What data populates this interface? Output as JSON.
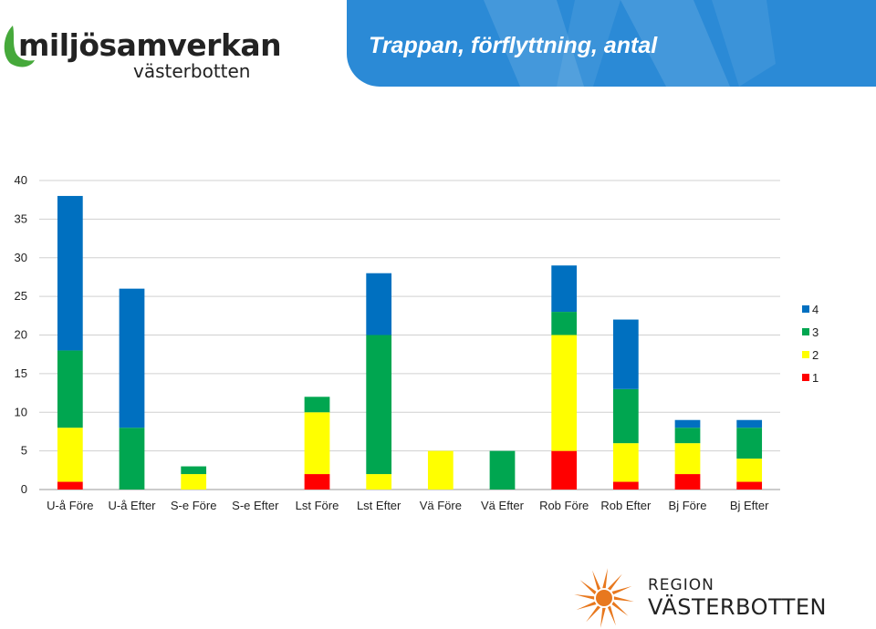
{
  "logo": {
    "main": "miljösamverkan",
    "sub": "västerbotten"
  },
  "header": {
    "title": "Trappan, förflyttning, antal"
  },
  "colors": {
    "header_bg": "#2b8ad6",
    "s1": "#ff0000",
    "s2": "#ffff00",
    "s3": "#00a650",
    "s4": "#0070c0",
    "logo_green": "#46a93b",
    "region_orange": "#e8781e"
  },
  "chart_data": {
    "type": "bar",
    "stacked": true,
    "title": "",
    "xlabel": "",
    "ylabel": "",
    "ylim": [
      0,
      40
    ],
    "yticks": [
      0,
      5,
      10,
      15,
      20,
      25,
      30,
      35,
      40
    ],
    "grid": true,
    "legend_position": "right",
    "categories": [
      "U-å Före",
      "U-å Efter",
      "S-e Före",
      "S-e Efter",
      "Lst Före",
      "Lst Efter",
      "Vä Före",
      "Vä Efter",
      "Rob Före",
      "Rob Efter",
      "Bj Före",
      "Bj Efter"
    ],
    "series": [
      {
        "name": "1",
        "color": "#ff0000",
        "values": [
          1,
          0,
          0,
          0,
          2,
          0,
          0,
          0,
          5,
          1,
          2,
          1
        ]
      },
      {
        "name": "2",
        "color": "#ffff00",
        "values": [
          7,
          0,
          2,
          0,
          8,
          2,
          5,
          0,
          15,
          5,
          4,
          3
        ]
      },
      {
        "name": "3",
        "color": "#00a650",
        "values": [
          10,
          8,
          1,
          0,
          2,
          18,
          0,
          5,
          3,
          7,
          2,
          4
        ]
      },
      {
        "name": "4",
        "color": "#0070c0",
        "values": [
          20,
          18,
          0,
          0,
          0,
          8,
          0,
          0,
          6,
          9,
          1,
          1
        ]
      }
    ]
  },
  "footer_logo": {
    "line1": "REGION",
    "line2": "VÄSTERBOTTEN"
  }
}
